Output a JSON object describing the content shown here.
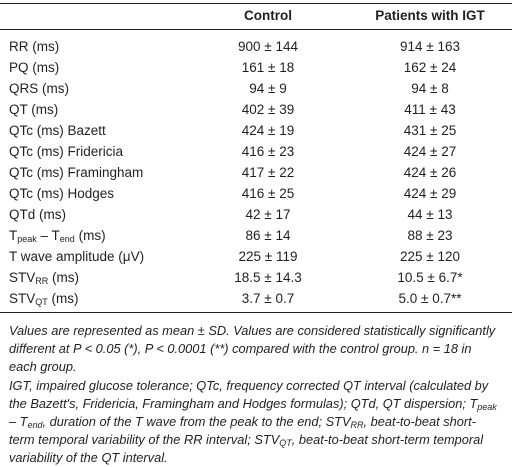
{
  "table": {
    "header": {
      "control": "Control",
      "igt": "Patients with IGT"
    },
    "rows": [
      {
        "label": [
          {
            "t": "RR (ms)"
          }
        ],
        "control": "900 ± 144",
        "igt": "914 ± 163"
      },
      {
        "label": [
          {
            "t": "PQ (ms)"
          }
        ],
        "control": "161 ± 18",
        "igt": "162 ± 24"
      },
      {
        "label": [
          {
            "t": "QRS (ms)"
          }
        ],
        "control": "94 ± 9",
        "igt": "94 ± 8"
      },
      {
        "label": [
          {
            "t": "QT (ms)"
          }
        ],
        "control": "402 ± 39",
        "igt": "411 ± 43"
      },
      {
        "label": [
          {
            "t": "QTc (ms) Bazett"
          }
        ],
        "control": "424 ± 19",
        "igt": "431 ± 25"
      },
      {
        "label": [
          {
            "t": "QTc (ms) Fridericia"
          }
        ],
        "control": "416 ± 23",
        "igt": "424 ± 27"
      },
      {
        "label": [
          {
            "t": "QTc (ms) Framingham"
          }
        ],
        "control": "417 ± 22",
        "igt": "424 ± 26"
      },
      {
        "label": [
          {
            "t": "QTc (ms) Hodges"
          }
        ],
        "control": "416 ± 25",
        "igt": "424 ± 29"
      },
      {
        "label": [
          {
            "t": "QTd (ms)"
          }
        ],
        "control": "42 ± 17",
        "igt": "44 ± 13"
      },
      {
        "label": [
          {
            "t": "T"
          },
          {
            "sub": "peak"
          },
          {
            "t": " – T"
          },
          {
            "sub": "end"
          },
          {
            "t": " (ms)"
          }
        ],
        "control": "86 ± 14",
        "igt": "88 ± 23"
      },
      {
        "label": [
          {
            "t": "T wave amplitude (μV)"
          }
        ],
        "control": "225 ± 119",
        "igt": "225 ± 120"
      },
      {
        "label": [
          {
            "t": "STV"
          },
          {
            "sub": "RR"
          },
          {
            "t": " (ms)"
          }
        ],
        "control": "18.5 ± 14.3",
        "igt": "10.5 ± 6.7*"
      },
      {
        "label": [
          {
            "t": "STV"
          },
          {
            "sub": "QT"
          },
          {
            "t": " (ms)"
          }
        ],
        "control": "3.7 ± 0.7",
        "igt": "5.0 ± 0.7**"
      }
    ],
    "footnotes": [
      [
        {
          "t": "Values are represented as mean ± SD. Values are considered statistically significantly different at P < 0.05 (*), P < 0.0001 (**) compared with the control group. n = 18 in each group."
        }
      ],
      [
        {
          "t": "IGT, impaired glucose tolerance; QTc, frequency corrected QT interval (calculated by the Bazett's, Fridericia, Framingham and Hodges formulas); QTd, QT dispersion; T"
        },
        {
          "sub": "peak"
        },
        {
          "t": " – T"
        },
        {
          "sub": "end"
        },
        {
          "t": ", duration of the T wave from the peak to the end; STV"
        },
        {
          "sub": "RR"
        },
        {
          "t": ", beat-to-beat short-term temporal variability of the RR interval; STV"
        },
        {
          "sub": "QT"
        },
        {
          "t": ", beat-to-beat short-term temporal variability of the QT interval."
        }
      ]
    ]
  }
}
